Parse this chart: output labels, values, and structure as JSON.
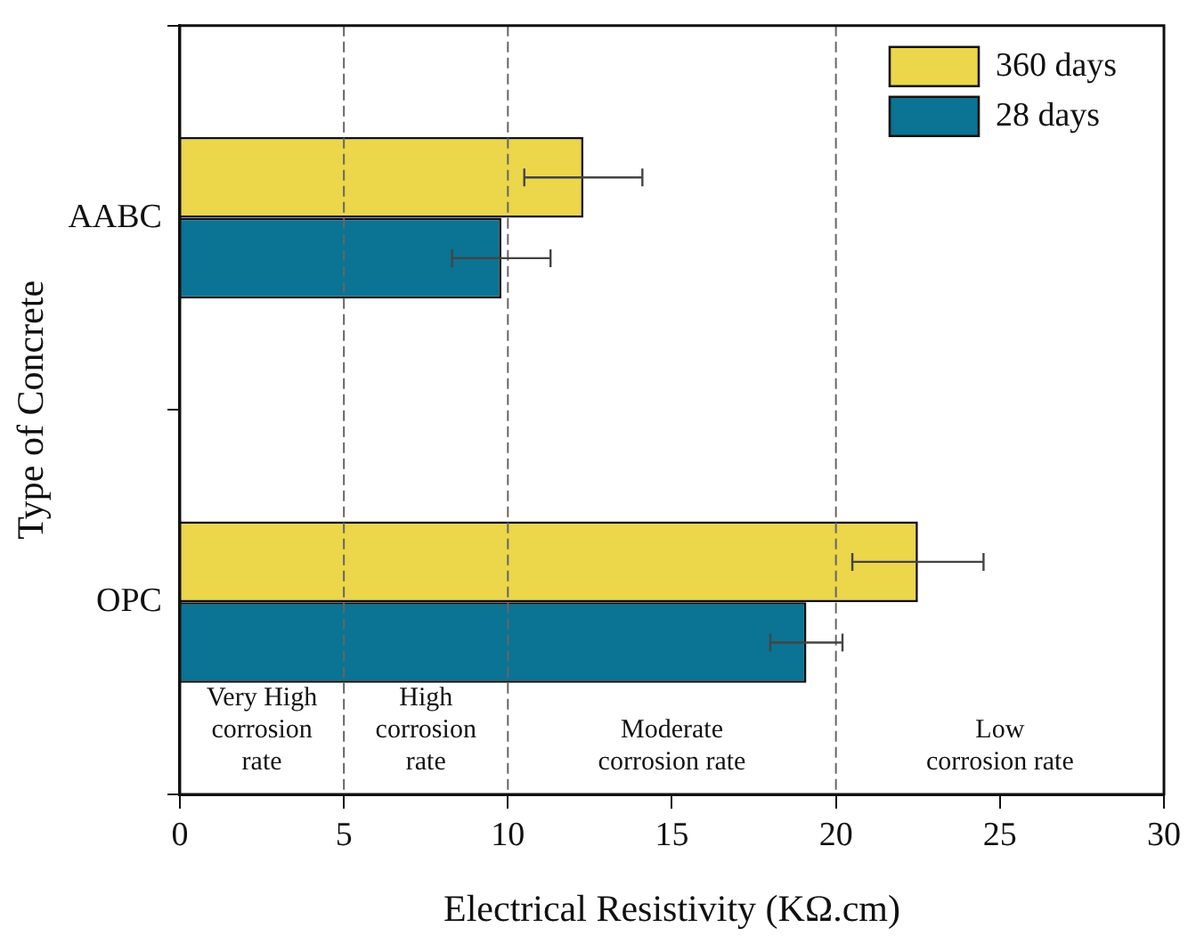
{
  "chart_data": {
    "type": "bar",
    "orientation": "horizontal",
    "xlabel": "Electrical Resistivity (KΩ.cm)",
    "ylabel": "Type of Concrete",
    "categories": [
      "AABC",
      "OPC"
    ],
    "series": [
      {
        "name": "360 days",
        "color": "#ecd64a",
        "values": [
          12.3,
          22.5
        ],
        "errors": [
          1.8,
          2.0
        ]
      },
      {
        "name": "28 days",
        "color": "#0b7393",
        "values": [
          9.8,
          19.1
        ],
        "errors": [
          1.5,
          1.1
        ]
      }
    ],
    "xlim": [
      0,
      30
    ],
    "xticks": [
      0,
      5,
      10,
      15,
      20,
      25,
      30
    ],
    "ref_lines": [
      {
        "axis": "x",
        "value": 5,
        "line_style": "dashed"
      },
      {
        "axis": "x",
        "value": 10,
        "line_style": "dashed"
      },
      {
        "axis": "x",
        "value": 20,
        "line_style": "dashed"
      }
    ],
    "annotations": [
      "Very High corrosion rate",
      "High corrosion rate",
      "Moderate corrosion rate",
      "Low corrosion rate"
    ],
    "legend": "top right"
  }
}
